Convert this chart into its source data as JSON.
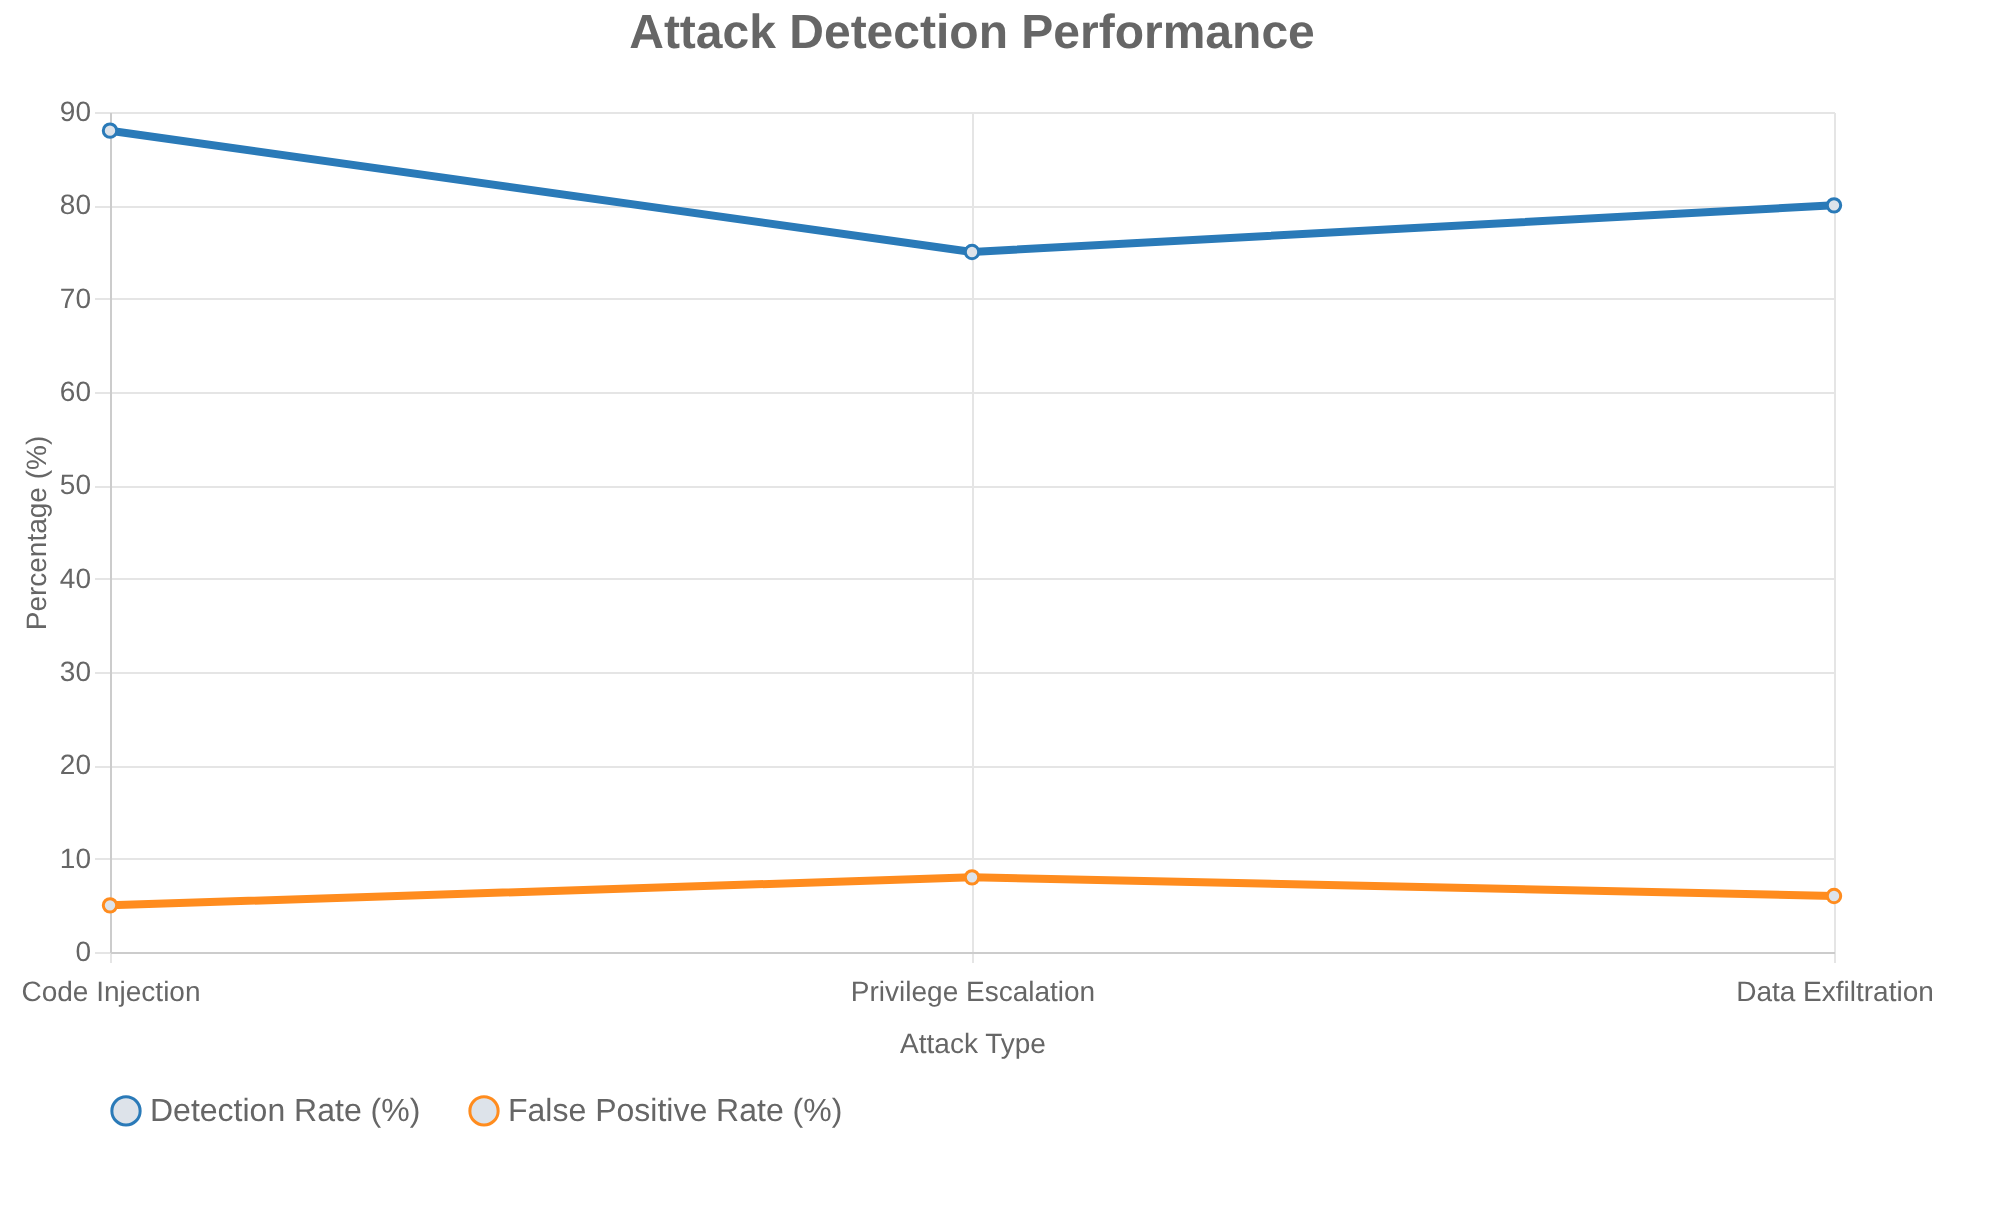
{
  "chart_data": {
    "type": "line",
    "title": "Attack Detection Performance",
    "xlabel": "Attack Type",
    "ylabel": "Percentage (%)",
    "categories": [
      "Code Injection",
      "Privilege Escalation",
      "Data Exfiltration"
    ],
    "series": [
      {
        "name": "Detection Rate (%)",
        "color": "#2a7ab8",
        "values": [
          88,
          75,
          80
        ]
      },
      {
        "name": "False Positive Rate (%)",
        "color": "#ff8c1e",
        "values": [
          5,
          8,
          6
        ]
      }
    ],
    "ylim": [
      0,
      90
    ],
    "yticks": [
      0,
      10,
      20,
      30,
      40,
      50,
      60,
      70,
      80,
      90
    ],
    "grid": true,
    "legend": "bottom",
    "marker": "circle",
    "line_style": "solid"
  }
}
